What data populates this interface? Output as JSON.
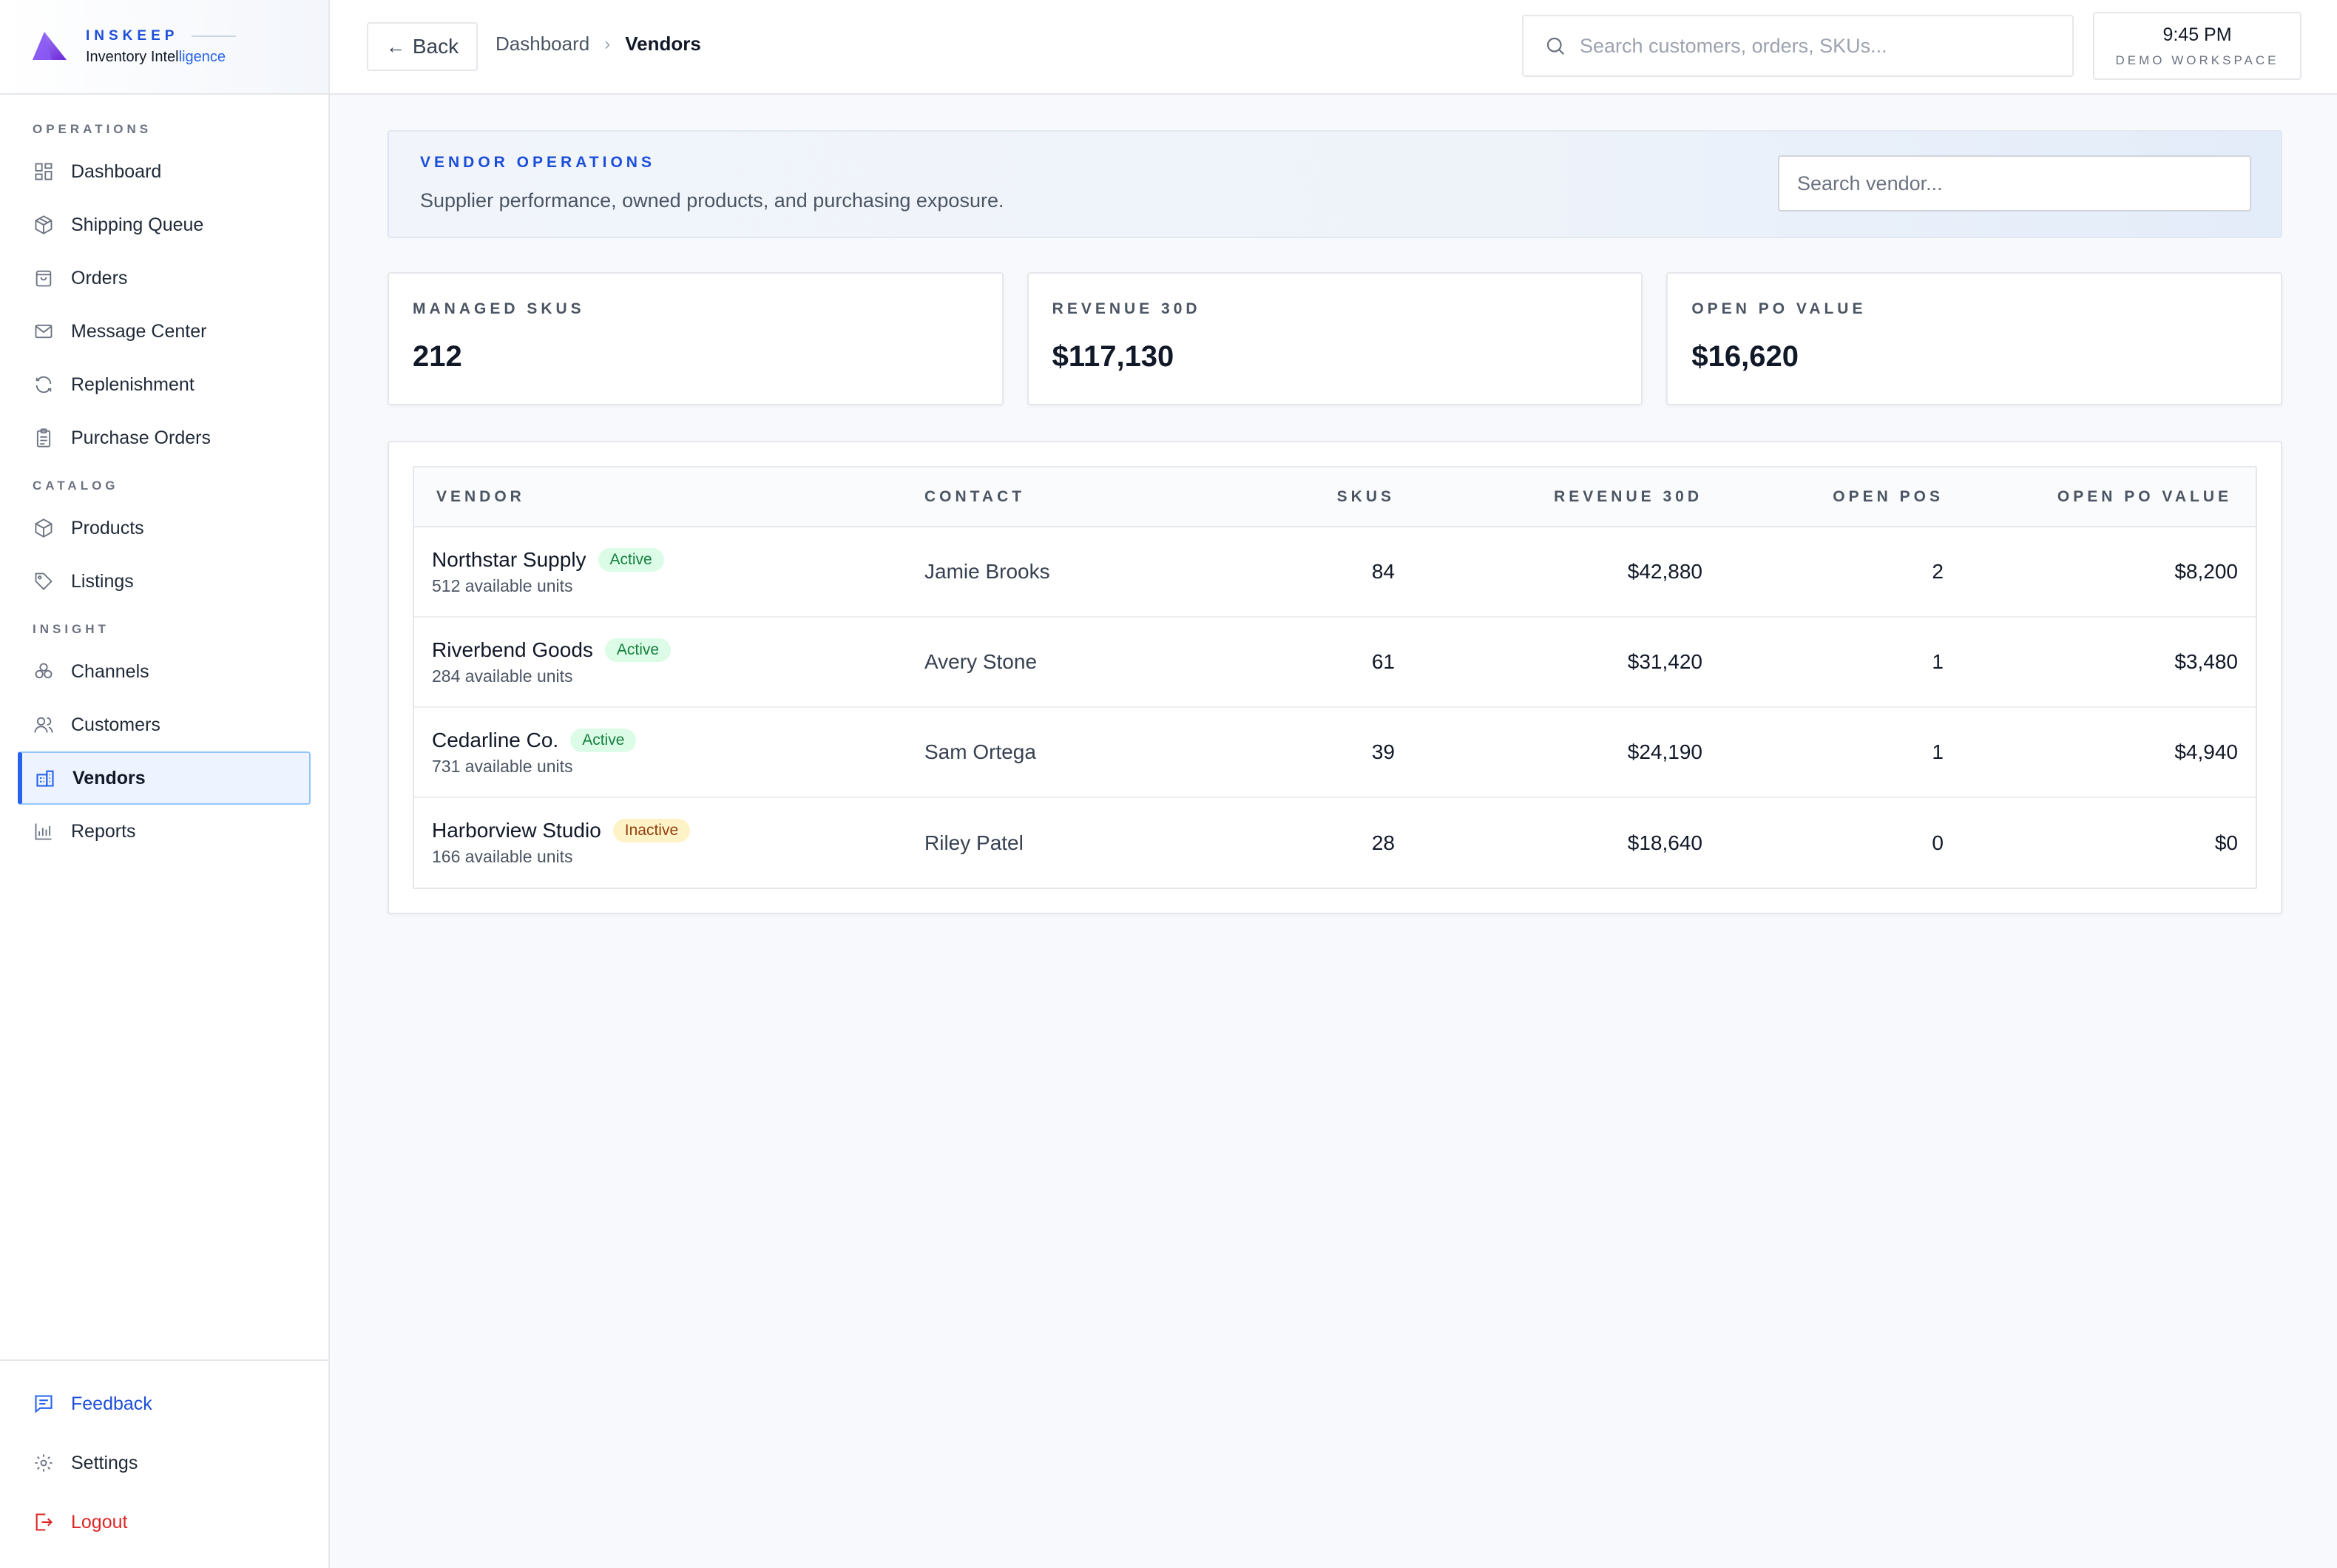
{
  "brand": {
    "name": "INSKEEP",
    "subtitle_prefix": "Inventory Intel",
    "subtitle_highlight": "ligence"
  },
  "sidebar": {
    "sections": [
      {
        "label": "OPERATIONS",
        "items": [
          {
            "label": "Dashboard",
            "icon": "grid-icon"
          },
          {
            "label": "Shipping Queue",
            "icon": "box-icon"
          },
          {
            "label": "Orders",
            "icon": "bag-icon"
          },
          {
            "label": "Message Center",
            "icon": "mail-icon"
          },
          {
            "label": "Replenishment",
            "icon": "refresh-icon"
          },
          {
            "label": "Purchase Orders",
            "icon": "clipboard-icon"
          }
        ]
      },
      {
        "label": "CATALOG",
        "items": [
          {
            "label": "Products",
            "icon": "cube-icon"
          },
          {
            "label": "Listings",
            "icon": "tag-icon"
          }
        ]
      },
      {
        "label": "INSIGHT",
        "items": [
          {
            "label": "Channels",
            "icon": "channels-icon"
          },
          {
            "label": "Customers",
            "icon": "users-icon"
          },
          {
            "label": "Vendors",
            "icon": "building-icon",
            "active": true
          },
          {
            "label": "Reports",
            "icon": "bar-chart-icon"
          }
        ]
      }
    ],
    "footer": {
      "feedback": "Feedback",
      "settings": "Settings",
      "logout": "Logout"
    }
  },
  "topbar": {
    "back_label": "Back",
    "breadcrumb": {
      "parent": "Dashboard",
      "separator": "›",
      "current": "Vendors"
    },
    "search_placeholder": "Search customers, orders, SKUs...",
    "clock": {
      "time": "9:45 PM",
      "workspace": "DEMO WORKSPACE"
    }
  },
  "hero": {
    "eyebrow": "VENDOR OPERATIONS",
    "description": "Supplier performance, owned products, and purchasing exposure.",
    "search_placeholder": "Search vendor..."
  },
  "stats": [
    {
      "label": "MANAGED SKUS",
      "value": "212"
    },
    {
      "label": "REVENUE 30D",
      "value": "$117,130"
    },
    {
      "label": "OPEN PO VALUE",
      "value": "$16,620"
    }
  ],
  "table": {
    "columns": [
      "VENDOR",
      "CONTACT",
      "SKUS",
      "REVENUE 30D",
      "OPEN POS",
      "OPEN PO VALUE"
    ],
    "rows": [
      {
        "vendor": "Northstar Supply",
        "status": "Active",
        "units": "512 available units",
        "contact": "Jamie Brooks",
        "skus": "84",
        "revenue": "$42,880",
        "open_pos": "2",
        "open_po_value": "$8,200"
      },
      {
        "vendor": "Riverbend Goods",
        "status": "Active",
        "units": "284 available units",
        "contact": "Avery Stone",
        "skus": "61",
        "revenue": "$31,420",
        "open_pos": "1",
        "open_po_value": "$3,480"
      },
      {
        "vendor": "Cedarline Co.",
        "status": "Active",
        "units": "731 available units",
        "contact": "Sam Ortega",
        "skus": "39",
        "revenue": "$24,190",
        "open_pos": "1",
        "open_po_value": "$4,940"
      },
      {
        "vendor": "Harborview Studio",
        "status": "Inactive",
        "units": "166 available units",
        "contact": "Riley Patel",
        "skus": "28",
        "revenue": "$18,640",
        "open_pos": "0",
        "open_po_value": "$0"
      }
    ]
  },
  "colors": {
    "accent": "#2563eb",
    "active_badge": "#dcfce7",
    "inactive_badge": "#fef3c7",
    "logout": "#dc2626"
  }
}
